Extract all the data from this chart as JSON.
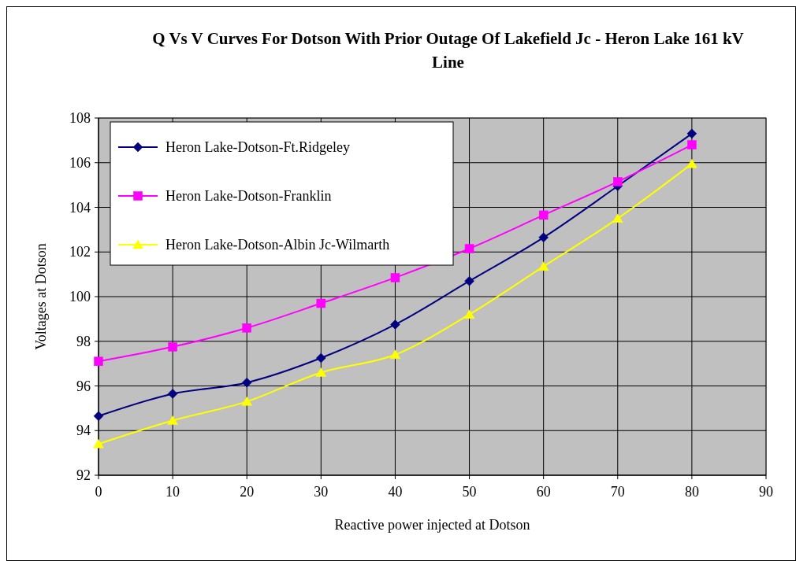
{
  "chart_data": {
    "type": "line",
    "title": "Q Vs V Curves For Dotson With Prior Outage Of Lakefield Jc - Heron Lake 161 kV Line",
    "xlabel": "Reactive power injected at Dotson",
    "ylabel": "Voltages at Dotson",
    "x": [
      0,
      10,
      20,
      30,
      40,
      50,
      60,
      70,
      80
    ],
    "xlim": [
      0,
      90
    ],
    "xticks": [
      0,
      10,
      20,
      30,
      40,
      50,
      60,
      70,
      80,
      90
    ],
    "ylim": [
      92,
      108
    ],
    "yticks": [
      92,
      94,
      96,
      98,
      100,
      102,
      104,
      106,
      108
    ],
    "grid": true,
    "legend": "top left",
    "line_style": "solid",
    "series": [
      {
        "name": "Heron Lake-Dotson-Ft.Ridgeley",
        "color": "#000080",
        "marker": "diamond",
        "values": [
          94.65,
          95.65,
          96.15,
          97.25,
          98.75,
          100.7,
          102.65,
          104.95,
          107.3
        ]
      },
      {
        "name": "Heron Lake-Dotson-Franklin",
        "color": "#ff00ff",
        "marker": "square",
        "values": [
          97.1,
          97.75,
          98.6,
          99.7,
          100.85,
          102.15,
          103.65,
          105.15,
          106.8
        ]
      },
      {
        "name": "Heron Lake-Dotson-Albin Jc-Wilmarth",
        "color": "#ffff00",
        "marker": "triangle",
        "values": [
          93.4,
          94.45,
          95.3,
          96.6,
          97.4,
          99.2,
          101.35,
          103.5,
          105.95
        ]
      }
    ]
  }
}
